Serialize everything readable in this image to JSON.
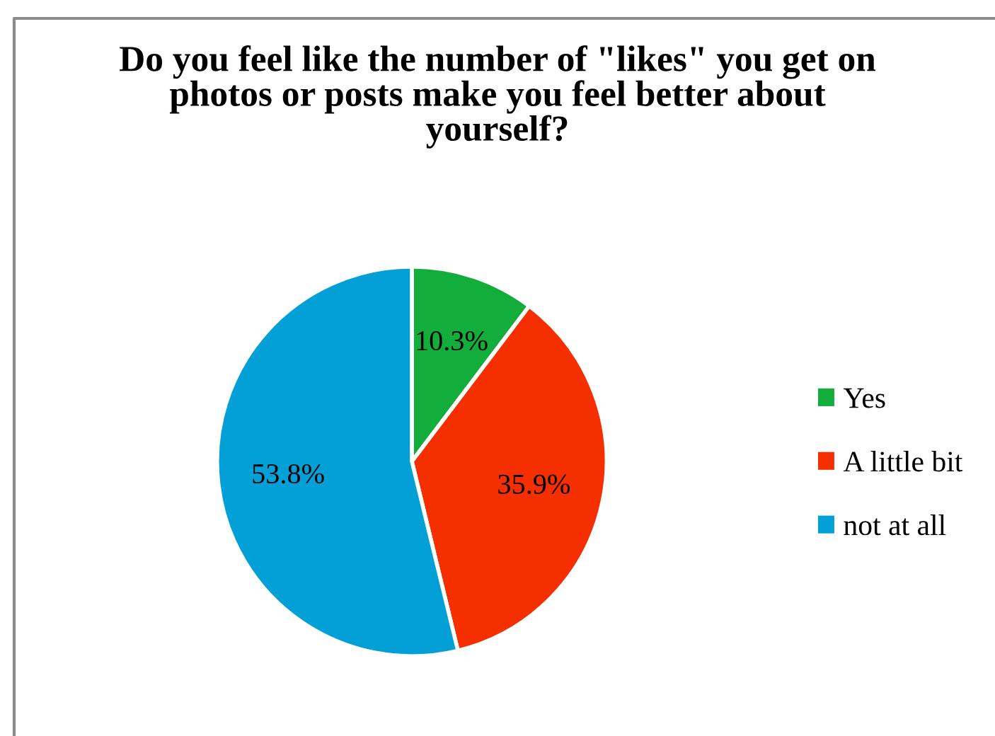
{
  "chart_data": {
    "type": "pie",
    "title": "Do you feel like the number of \"likes\" you get on photos or posts make you feel better about yourself?",
    "categories": [
      "Yes",
      "A little bit",
      "not at all"
    ],
    "values": [
      10.3,
      35.9,
      53.8
    ],
    "colors": [
      "#12ad3a",
      "#f52f00",
      "#03a0d8"
    ],
    "value_labels": [
      "10.3%",
      "35.9%",
      "53.8%"
    ],
    "legend": "right"
  }
}
